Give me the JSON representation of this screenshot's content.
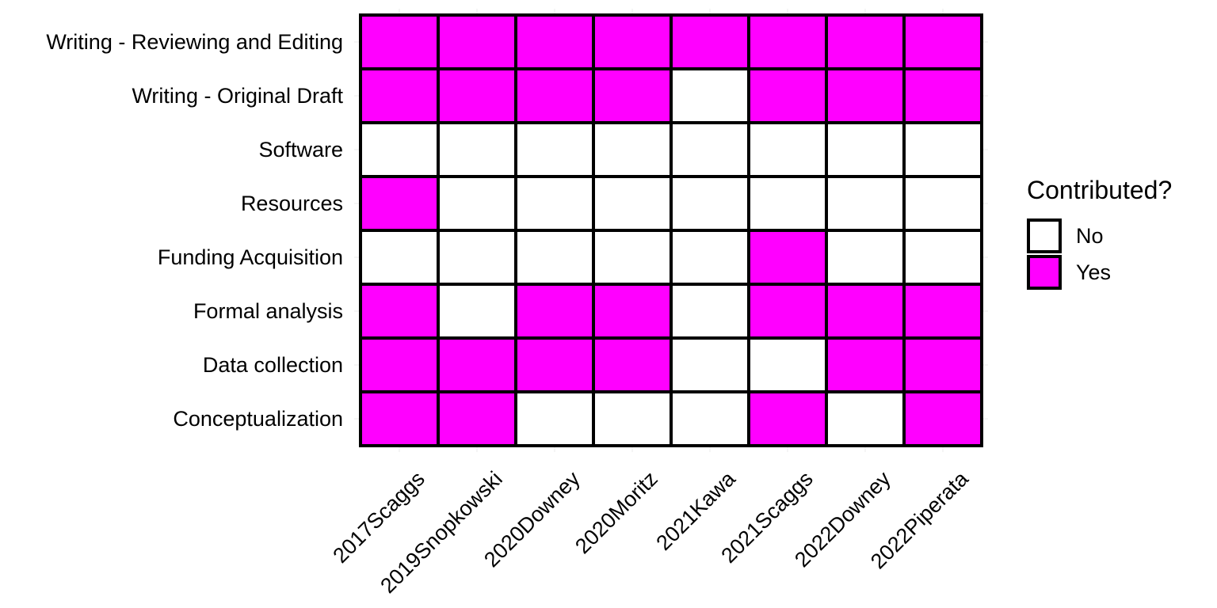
{
  "chart_data": {
    "type": "heatmap",
    "x_categories": [
      "2017Scaggs",
      "2019Snopkowski",
      "2020Downey",
      "2020Moritz",
      "2021Kawa",
      "2021Scaggs",
      "2022Downey",
      "2022Piperata"
    ],
    "y_categories": [
      "Writing - Reviewing and Editing",
      "Writing - Original Draft",
      "Software",
      "Resources",
      "Funding Acquisition",
      "Formal analysis",
      "Data collection",
      "Conceptualization"
    ],
    "values": [
      [
        "Yes",
        "Yes",
        "Yes",
        "Yes",
        "Yes",
        "Yes",
        "Yes",
        "Yes"
      ],
      [
        "Yes",
        "Yes",
        "Yes",
        "Yes",
        "No",
        "Yes",
        "Yes",
        "Yes"
      ],
      [
        "No",
        "No",
        "No",
        "No",
        "No",
        "No",
        "No",
        "No"
      ],
      [
        "Yes",
        "No",
        "No",
        "No",
        "No",
        "No",
        "No",
        "No"
      ],
      [
        "No",
        "No",
        "No",
        "No",
        "No",
        "Yes",
        "No",
        "No"
      ],
      [
        "Yes",
        "No",
        "Yes",
        "Yes",
        "No",
        "Yes",
        "Yes",
        "Yes"
      ],
      [
        "Yes",
        "Yes",
        "Yes",
        "Yes",
        "No",
        "No",
        "Yes",
        "Yes"
      ],
      [
        "Yes",
        "Yes",
        "No",
        "No",
        "No",
        "Yes",
        "No",
        "Yes"
      ]
    ],
    "legend": {
      "title": "Contributed?",
      "entries": [
        "No",
        "Yes"
      ],
      "position": "right"
    },
    "colors": {
      "Yes": "#ff00ff",
      "No": "#ffffff",
      "border": "#000000",
      "grid": "#ebebeb"
    },
    "grid": true
  }
}
